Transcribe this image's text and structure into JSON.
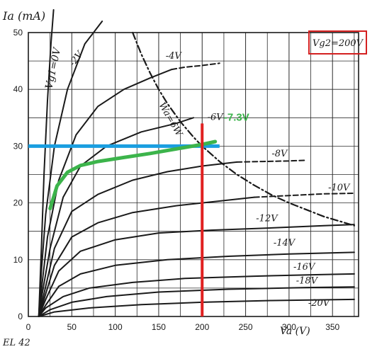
{
  "chart_data": {
    "type": "line",
    "title": "",
    "xlabel": "Va (V)",
    "ylabel": "Ia (mA)",
    "xlim": [
      0,
      380
    ],
    "ylim": [
      0,
      50
    ],
    "x_ticks": [
      "0",
      "50",
      "100",
      "150",
      "200",
      "250",
      "300",
      "350"
    ],
    "y_ticks": [
      "0",
      "10",
      "20",
      "30",
      "40",
      "50"
    ],
    "grid": true,
    "corner_label": "EL 42",
    "box_label": "Vg2=200V",
    "series": [
      {
        "name": "Vg1=0V",
        "dashed": false,
        "points": [
          [
            12,
            0
          ],
          [
            15,
            12
          ],
          [
            18,
            25
          ],
          [
            22,
            38
          ],
          [
            26,
            48
          ],
          [
            29,
            54
          ]
        ]
      },
      {
        "name": "-2V",
        "dashed": false,
        "points": [
          [
            12,
            0
          ],
          [
            15,
            8
          ],
          [
            20,
            18
          ],
          [
            30,
            30
          ],
          [
            45,
            40
          ],
          [
            65,
            48
          ],
          [
            85,
            52
          ]
        ]
      },
      {
        "name": "-4V",
        "dashed": false,
        "points": [
          [
            12,
            0
          ],
          [
            16,
            6
          ],
          [
            22,
            14
          ],
          [
            35,
            24
          ],
          [
            55,
            32
          ],
          [
            80,
            37
          ],
          [
            110,
            40
          ],
          [
            140,
            42
          ],
          [
            165,
            43.5
          ]
        ]
      },
      {
        "name": "-4V",
        "dashed": true,
        "points": [
          [
            165,
            43.5
          ],
          [
            180,
            43.9
          ],
          [
            200,
            44.2
          ],
          [
            220,
            44.6
          ]
        ]
      },
      {
        "name": "-6V",
        "dashed": false,
        "points": [
          [
            12,
            0
          ],
          [
            16,
            4
          ],
          [
            25,
            12
          ],
          [
            40,
            21
          ],
          [
            60,
            26.5
          ],
          [
            90,
            30
          ],
          [
            130,
            32.5
          ],
          [
            170,
            34
          ],
          [
            190,
            35
          ]
        ]
      },
      {
        "name": "-8V",
        "dashed": false,
        "points": [
          [
            12,
            0
          ],
          [
            18,
            4
          ],
          [
            30,
            12
          ],
          [
            50,
            18.5
          ],
          [
            80,
            21.5
          ],
          [
            120,
            24
          ],
          [
            160,
            25.5
          ],
          [
            200,
            26.5
          ],
          [
            240,
            27.2
          ]
        ]
      },
      {
        "name": "-8V",
        "dashed": true,
        "points": [
          [
            240,
            27.2
          ],
          [
            270,
            27.3
          ],
          [
            300,
            27.4
          ],
          [
            320,
            27.5
          ]
        ]
      },
      {
        "name": "-10V",
        "dashed": false,
        "points": [
          [
            12,
            0
          ],
          [
            18,
            3
          ],
          [
            30,
            9
          ],
          [
            50,
            14
          ],
          [
            80,
            16.5
          ],
          [
            120,
            18.3
          ],
          [
            170,
            19.5
          ],
          [
            230,
            20.5
          ],
          [
            260,
            21
          ]
        ]
      },
      {
        "name": "-10V",
        "dashed": true,
        "points": [
          [
            260,
            21
          ],
          [
            300,
            21.3
          ],
          [
            340,
            21.6
          ],
          [
            375,
            21.7
          ]
        ]
      },
      {
        "name": "-12V",
        "dashed": false,
        "points": [
          [
            12,
            0
          ],
          [
            20,
            3
          ],
          [
            35,
            8
          ],
          [
            60,
            11.5
          ],
          [
            100,
            13.5
          ],
          [
            150,
            14.7
          ],
          [
            210,
            15.2
          ],
          [
            280,
            15.6
          ],
          [
            340,
            16
          ],
          [
            375,
            16.2
          ]
        ]
      },
      {
        "name": "-14V",
        "dashed": false,
        "points": [
          [
            12,
            0
          ],
          [
            20,
            2
          ],
          [
            35,
            5.3
          ],
          [
            60,
            7.5
          ],
          [
            100,
            9
          ],
          [
            160,
            10
          ],
          [
            230,
            10.6
          ],
          [
            300,
            11
          ],
          [
            375,
            11.3
          ]
        ]
      },
      {
        "name": "-16V",
        "dashed": false,
        "points": [
          [
            12,
            0
          ],
          [
            20,
            1.5
          ],
          [
            40,
            3.5
          ],
          [
            70,
            5
          ],
          [
            120,
            6
          ],
          [
            180,
            6.7
          ],
          [
            260,
            7.1
          ],
          [
            340,
            7.4
          ],
          [
            375,
            7.5
          ]
        ]
      },
      {
        "name": "-18V",
        "dashed": false,
        "points": [
          [
            12,
            0
          ],
          [
            25,
            1.2
          ],
          [
            50,
            2.5
          ],
          [
            90,
            3.5
          ],
          [
            150,
            4.3
          ],
          [
            230,
            4.8
          ],
          [
            320,
            5.1
          ],
          [
            375,
            5.2
          ]
        ]
      },
      {
        "name": "-20V",
        "dashed": false,
        "points": [
          [
            12,
            0
          ],
          [
            30,
            0.8
          ],
          [
            70,
            1.5
          ],
          [
            130,
            2.1
          ],
          [
            200,
            2.5
          ],
          [
            280,
            2.8
          ],
          [
            375,
            3
          ]
        ]
      },
      {
        "name": "Wa=6W",
        "dashed": true,
        "dashdot": true,
        "points": [
          [
            120,
            50
          ],
          [
            130,
            46.2
          ],
          [
            140,
            42.9
          ],
          [
            150,
            40
          ],
          [
            160,
            37.5
          ],
          [
            175,
            34.3
          ],
          [
            190,
            31.6
          ],
          [
            200,
            30
          ],
          [
            220,
            27.3
          ],
          [
            240,
            25
          ],
          [
            260,
            23.1
          ],
          [
            280,
            21.4
          ],
          [
            300,
            20
          ],
          [
            320,
            18.8
          ],
          [
            340,
            17.6
          ],
          [
            360,
            16.7
          ],
          [
            375,
            16
          ]
        ]
      }
    ],
    "curve_labels": [
      {
        "text": "Vg1=0V",
        "x": 27,
        "y": 40,
        "rotate": -78,
        "size": 14
      },
      {
        "text": "-2V",
        "x": 52,
        "y": 44,
        "rotate": -52,
        "size": 13
      },
      {
        "text": "-4V",
        "x": 158,
        "y": 45.4,
        "rotate": 0,
        "size": 13
      },
      {
        "text": "-6V",
        "x": 206,
        "y": 34.6,
        "rotate": 0,
        "size": 13
      },
      {
        "text": "-8V",
        "x": 280,
        "y": 28.2,
        "rotate": 0,
        "size": 13
      },
      {
        "text": "-10V",
        "x": 345,
        "y": 22.2,
        "rotate": 0,
        "size": 13
      },
      {
        "text": "-12V",
        "x": 262,
        "y": 16.8,
        "rotate": 0,
        "size": 13
      },
      {
        "text": "-14V",
        "x": 282,
        "y": 12.5,
        "rotate": 0,
        "size": 13
      },
      {
        "text": "-16V",
        "x": 305,
        "y": 8.2,
        "rotate": 0,
        "size": 13
      },
      {
        "text": "-18V",
        "x": 308,
        "y": 5.8,
        "rotate": 0,
        "size": 13
      },
      {
        "text": "-20V",
        "x": 322,
        "y": 1.9,
        "rotate": 0,
        "size": 13
      },
      {
        "text": "Wa=6W",
        "x": 150,
        "y": 37.3,
        "rotate": 60,
        "size": 13
      }
    ],
    "annotations": {
      "green_curve": {
        "label": "-7.3V",
        "label_x": 225,
        "label_y": 34.5,
        "color": "#3cb44b",
        "points": [
          [
            25,
            19
          ],
          [
            33,
            23
          ],
          [
            45,
            25.4
          ],
          [
            60,
            26.6
          ],
          [
            80,
            27.3
          ],
          [
            110,
            28
          ],
          [
            140,
            28.7
          ],
          [
            170,
            29.5
          ],
          [
            200,
            30.3
          ],
          [
            215,
            30.8
          ]
        ]
      },
      "blue_line": {
        "y": 30,
        "x_from": 0,
        "x_to": 220,
        "color": "#1a9ee0"
      },
      "red_line": {
        "x": 200,
        "y_from": 0,
        "y_to": 34,
        "color": "#e02020"
      }
    }
  },
  "colors": {
    "ink": "#1a1a1a",
    "grid": "#2b2b2b",
    "highlight_box": "#d42020"
  }
}
